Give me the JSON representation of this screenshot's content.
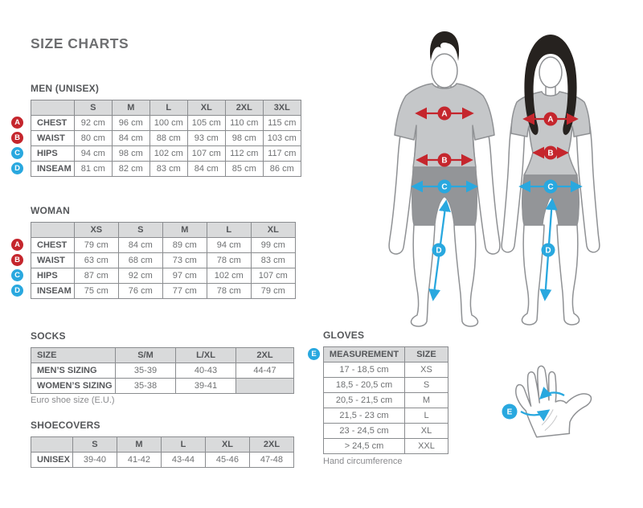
{
  "page": {
    "title": "SIZE CHARTS"
  },
  "colors": {
    "red": "#c5262d",
    "blue": "#29a8df",
    "header_bg": "#d9dadb",
    "table_border": "#8a8c8f",
    "label_text": "#55575a",
    "value_text": "#6e7072",
    "shirt_gray": "#c5c7c9",
    "shorts_gray": "#939598",
    "outline_gray": "#8f9194"
  },
  "men_table": {
    "heading": "MEN (UNISEX)",
    "columns": [
      "",
      "S",
      "M",
      "L",
      "XL",
      "2XL",
      "3XL"
    ],
    "rows": [
      {
        "badge": "A",
        "badge_color": "red",
        "label": "CHEST",
        "values": [
          "92 cm",
          "96 cm",
          "100 cm",
          "105 cm",
          "110 cm",
          "115 cm"
        ]
      },
      {
        "badge": "B",
        "badge_color": "red",
        "label": "WAIST",
        "values": [
          "80 cm",
          "84 cm",
          "88 cm",
          "93 cm",
          "98 cm",
          "103 cm"
        ]
      },
      {
        "badge": "C",
        "badge_color": "blue",
        "label": "HIPS",
        "values": [
          "94 cm",
          "98 cm",
          "102 cm",
          "107 cm",
          "112 cm",
          "117 cm"
        ]
      },
      {
        "badge": "D",
        "badge_color": "blue",
        "label": "INSEAM",
        "values": [
          "81 cm",
          "82 cm",
          "83 cm",
          "84 cm",
          "85 cm",
          "86 cm"
        ]
      }
    ]
  },
  "woman_table": {
    "heading": "WOMAN",
    "columns": [
      "",
      "XS",
      "S",
      "M",
      "L",
      "XL"
    ],
    "rows": [
      {
        "badge": "A",
        "badge_color": "red",
        "label": "CHEST",
        "values": [
          "79 cm",
          "84 cm",
          "89 cm",
          "94 cm",
          "99 cm"
        ]
      },
      {
        "badge": "B",
        "badge_color": "red",
        "label": "WAIST",
        "values": [
          "63 cm",
          "68 cm",
          "73 cm",
          "78 cm",
          "83 cm"
        ]
      },
      {
        "badge": "C",
        "badge_color": "blue",
        "label": "HIPS",
        "values": [
          "87 cm",
          "92 cm",
          "97 cm",
          "102 cm",
          "107 cm"
        ]
      },
      {
        "badge": "D",
        "badge_color": "blue",
        "label": "INSEAM",
        "values": [
          "75 cm",
          "76 cm",
          "77 cm",
          "78 cm",
          "79 cm"
        ]
      }
    ]
  },
  "socks_table": {
    "heading": "SOCKS",
    "columns": [
      "SIZE",
      "S/M",
      "L/XL",
      "2XL"
    ],
    "rows": [
      {
        "label": "MEN’S SIZING",
        "values": [
          "35-39",
          "40-43",
          "44-47"
        ]
      },
      {
        "label": "WOMEN’S SIZING",
        "values": [
          "35-38",
          "39-41",
          ""
        ]
      }
    ],
    "note": "Euro shoe size (E.U.)"
  },
  "shoecovers_table": {
    "heading": "SHOECOVERS",
    "columns": [
      "",
      "S",
      "M",
      "L",
      "XL",
      "2XL"
    ],
    "rows": [
      {
        "label": "UNISEX",
        "values": [
          "39-40",
          "41-42",
          "43-44",
          "45-46",
          "47-48"
        ]
      }
    ]
  },
  "gloves_table": {
    "heading": "GLOVES",
    "badge": "E",
    "badge_color": "blue",
    "columns": [
      "MEASUREMENT",
      "SIZE"
    ],
    "rows": [
      {
        "values": [
          "17 - 18,5 cm",
          "XS"
        ]
      },
      {
        "values": [
          "18,5 - 20,5 cm",
          "S"
        ]
      },
      {
        "values": [
          "20,5 - 21,5 cm",
          "M"
        ]
      },
      {
        "values": [
          "21,5 - 23 cm",
          "L"
        ]
      },
      {
        "values": [
          "23 - 24,5 cm",
          "XL"
        ]
      },
      {
        "values": [
          "> 24,5 cm",
          "XXL"
        ]
      }
    ],
    "note": "Hand circumference"
  },
  "figures": {
    "male": {
      "markers": {
        "chest": "A",
        "waist": "B",
        "hips": "C",
        "inseam": "D"
      }
    },
    "female": {
      "markers": {
        "chest": "A",
        "waist": "B",
        "hips": "C",
        "inseam": "D"
      }
    },
    "hand": {
      "marker": "E"
    }
  }
}
